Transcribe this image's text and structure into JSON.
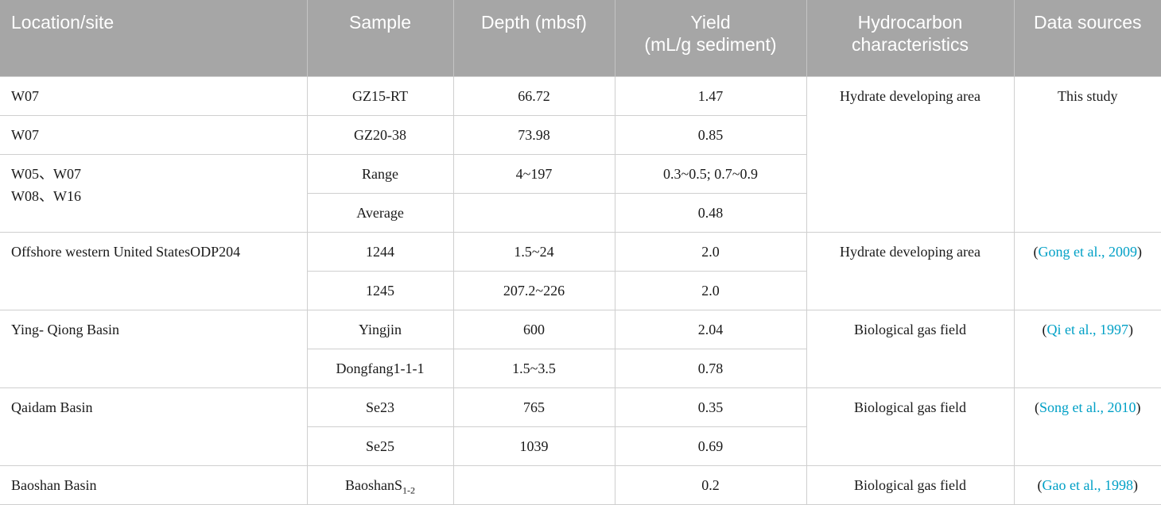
{
  "headers": [
    "Location/site",
    "Sample",
    "Depth (mbsf)",
    "Yield\n(mL/g sediment)",
    "Hydrocarbon\ncharacteristics",
    "Data sources"
  ],
  "header_yield": {
    "line1": "Yield",
    "line2": "(mL/g sediment)"
  },
  "header_hydro": {
    "line1": "Hydrocarbon",
    "line2": "characteristics"
  },
  "groups": {
    "g1": {
      "char": "Hydrate developing area",
      "source": "This study",
      "rows": [
        {
          "loc": "W07",
          "sample": "GZ15-RT",
          "depth": "66.72",
          "yield": "1.47"
        },
        {
          "loc": "W07",
          "sample": "GZ20-38",
          "depth": "73.98",
          "yield": "0.85"
        }
      ],
      "multi_loc": {
        "line1": "W05、W07",
        "line2": "W08、W16"
      },
      "range_row": {
        "sample": "Range",
        "depth": "4~197",
        "yield": "0.3~0.5; 0.7~0.9"
      },
      "avg_row": {
        "sample": "Average",
        "depth": "",
        "yield": "0.48"
      }
    },
    "g2": {
      "loc": "Offshore western United StatesODP204",
      "char": "Hydrate developing area",
      "source_open": "(",
      "source_cite": "Gong et al., 2009",
      "source_close": ")",
      "rows": [
        {
          "sample": "1244",
          "depth": "1.5~24",
          "yield": "2.0"
        },
        {
          "sample": "1245",
          "depth": "207.2~226",
          "yield": "2.0"
        }
      ]
    },
    "g3": {
      "loc": "Ying- Qiong Basin",
      "char": "Biological gas field",
      "source_open": "(",
      "source_cite": "Qi et al., 1997",
      "source_close": ")",
      "rows": [
        {
          "sample": "Yingjin",
          "depth": "600",
          "yield": "2.04"
        },
        {
          "sample": "Dongfang1-1-1",
          "depth": "1.5~3.5",
          "yield": "0.78"
        }
      ]
    },
    "g4": {
      "loc": "Qaidam Basin",
      "char": "Biological gas field",
      "source_open": "(",
      "source_cite": "Song et al., 2010",
      "source_close": ")",
      "rows": [
        {
          "sample": "Se23",
          "depth": "765",
          "yield": "0.35"
        },
        {
          "sample": "Se25",
          "depth": "1039",
          "yield": "0.69"
        }
      ]
    },
    "g5": {
      "loc": "Baoshan Basin",
      "sample_base": "Baoshan",
      "sample_sub": "S",
      "sample_subsub": "1-2",
      "depth": "",
      "yield": "0.2",
      "char": "Biological gas field",
      "source_open": "(",
      "source_cite": "Gao et al., 1998",
      "source_close": ")"
    }
  },
  "colors": {
    "header_bg": "#a6a6a6",
    "header_text": "#ffffff",
    "link": "#00a0c6",
    "border": "#cfcfcf"
  }
}
